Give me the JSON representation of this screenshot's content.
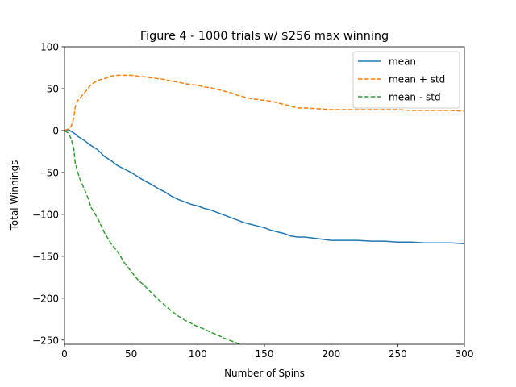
{
  "chart_data": {
    "type": "line",
    "title": "Figure 4 - 1000 trials w/ $256 max winning",
    "xlabel": "Number of Spins",
    "ylabel": "Total Winnings",
    "xlim": [
      0,
      300
    ],
    "ylim": [
      -255,
      100
    ],
    "xticks": [
      0,
      50,
      100,
      150,
      200,
      250,
      300
    ],
    "yticks": [
      100,
      50,
      0,
      -50,
      -100,
      -150,
      -200,
      -250
    ],
    "xtick_labels": [
      "0",
      "50",
      "100",
      "150",
      "200",
      "250",
      "300"
    ],
    "ytick_labels": [
      "100",
      "50",
      "0",
      "−50",
      "−100",
      "−150",
      "−200",
      "−250"
    ],
    "grid": false,
    "legend_position": "top-right",
    "series": [
      {
        "name": "mean",
        "color": "#1f77b4",
        "style": "solid",
        "x": [
          0,
          3,
          5,
          8,
          10,
          15,
          20,
          25,
          30,
          35,
          40,
          45,
          50,
          55,
          60,
          65,
          70,
          75,
          80,
          85,
          90,
          95,
          100,
          105,
          110,
          115,
          120,
          125,
          130,
          135,
          140,
          145,
          150,
          155,
          160,
          165,
          170,
          175,
          180,
          185,
          190,
          200,
          210,
          220,
          230,
          240,
          250,
          260,
          270,
          280,
          290,
          300
        ],
        "y": [
          0,
          1,
          -1,
          -4,
          -7,
          -12,
          -18,
          -23,
          -31,
          -36,
          -42,
          -46,
          -50,
          -55,
          -60,
          -64,
          -69,
          -73,
          -78,
          -82,
          -85,
          -88,
          -90,
          -93,
          -95,
          -98,
          -101,
          -104,
          -107,
          -110,
          -112,
          -114,
          -116,
          -119,
          -121,
          -123,
          -126,
          -127,
          -127,
          -128,
          -129,
          -131,
          -131,
          -131,
          -132,
          -132,
          -133,
          -133,
          -134,
          -134,
          -134,
          -135
        ]
      },
      {
        "name": "mean + std",
        "color": "#ff7f0e",
        "style": "dashed",
        "x": [
          0,
          3,
          5,
          7,
          8,
          10,
          15,
          20,
          25,
          30,
          35,
          40,
          45,
          50,
          55,
          60,
          65,
          70,
          75,
          80,
          85,
          90,
          95,
          100,
          105,
          110,
          115,
          120,
          125,
          130,
          135,
          140,
          145,
          150,
          155,
          160,
          165,
          170,
          175,
          180,
          190,
          200,
          210,
          220,
          230,
          240,
          250,
          260,
          270,
          280,
          290,
          300
        ],
        "y": [
          0,
          2,
          5,
          15,
          28,
          36,
          45,
          55,
          60,
          62,
          65,
          66,
          66,
          66,
          65,
          64,
          63,
          62,
          61,
          59,
          58,
          56,
          55,
          54,
          52,
          51,
          49,
          47,
          45,
          42,
          40,
          38,
          37,
          36,
          35,
          33,
          31,
          29,
          27,
          27,
          26,
          25,
          25,
          25,
          25,
          25,
          25,
          24,
          24,
          24,
          24,
          23
        ]
      },
      {
        "name": "mean - std",
        "color": "#2ca02c",
        "style": "dashed",
        "x": [
          0,
          3,
          5,
          7,
          8,
          10,
          12,
          15,
          18,
          20,
          25,
          30,
          35,
          40,
          45,
          50,
          55,
          60,
          65,
          70,
          75,
          80,
          85,
          90,
          95,
          100,
          105,
          110,
          115,
          120,
          125,
          130,
          132
        ],
        "y": [
          0,
          -3,
          -10,
          -22,
          -38,
          -50,
          -60,
          -70,
          -82,
          -92,
          -105,
          -122,
          -135,
          -145,
          -158,
          -168,
          -178,
          -185,
          -193,
          -201,
          -208,
          -215,
          -221,
          -226,
          -230,
          -234,
          -237,
          -241,
          -244,
          -248,
          -251,
          -254,
          -255
        ]
      }
    ]
  }
}
